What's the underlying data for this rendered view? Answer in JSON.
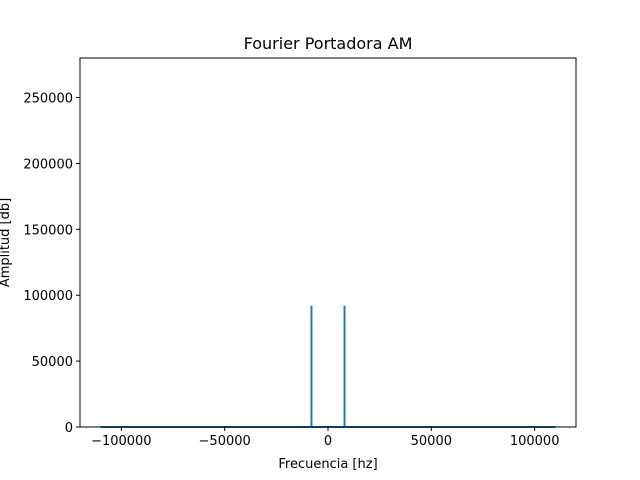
{
  "chart_data": {
    "type": "line",
    "title": "Fourier Portadora AM",
    "xlabel": "Frecuencia [hz]",
    "ylabel": "Amplitud [db]",
    "xlim": [
      -120000,
      120000
    ],
    "ylim": [
      0,
      280000
    ],
    "xticks": [
      -100000,
      -50000,
      0,
      50000,
      100000
    ],
    "xtick_labels": [
      "−100000",
      "−50000",
      "0",
      "50000",
      "100000"
    ],
    "yticks": [
      0,
      50000,
      100000,
      150000,
      200000,
      250000
    ],
    "ytick_labels": [
      "0",
      "50000",
      "100000",
      "150000",
      "200000",
      "250000"
    ],
    "grid": false,
    "series": [
      {
        "color": "#1f77b4",
        "x": [
          -110000,
          -8000,
          -8000,
          -8000,
          8000,
          8000,
          8000,
          110000
        ],
        "y": [
          0,
          0,
          92000,
          0,
          0,
          92000,
          0,
          0
        ]
      }
    ]
  }
}
